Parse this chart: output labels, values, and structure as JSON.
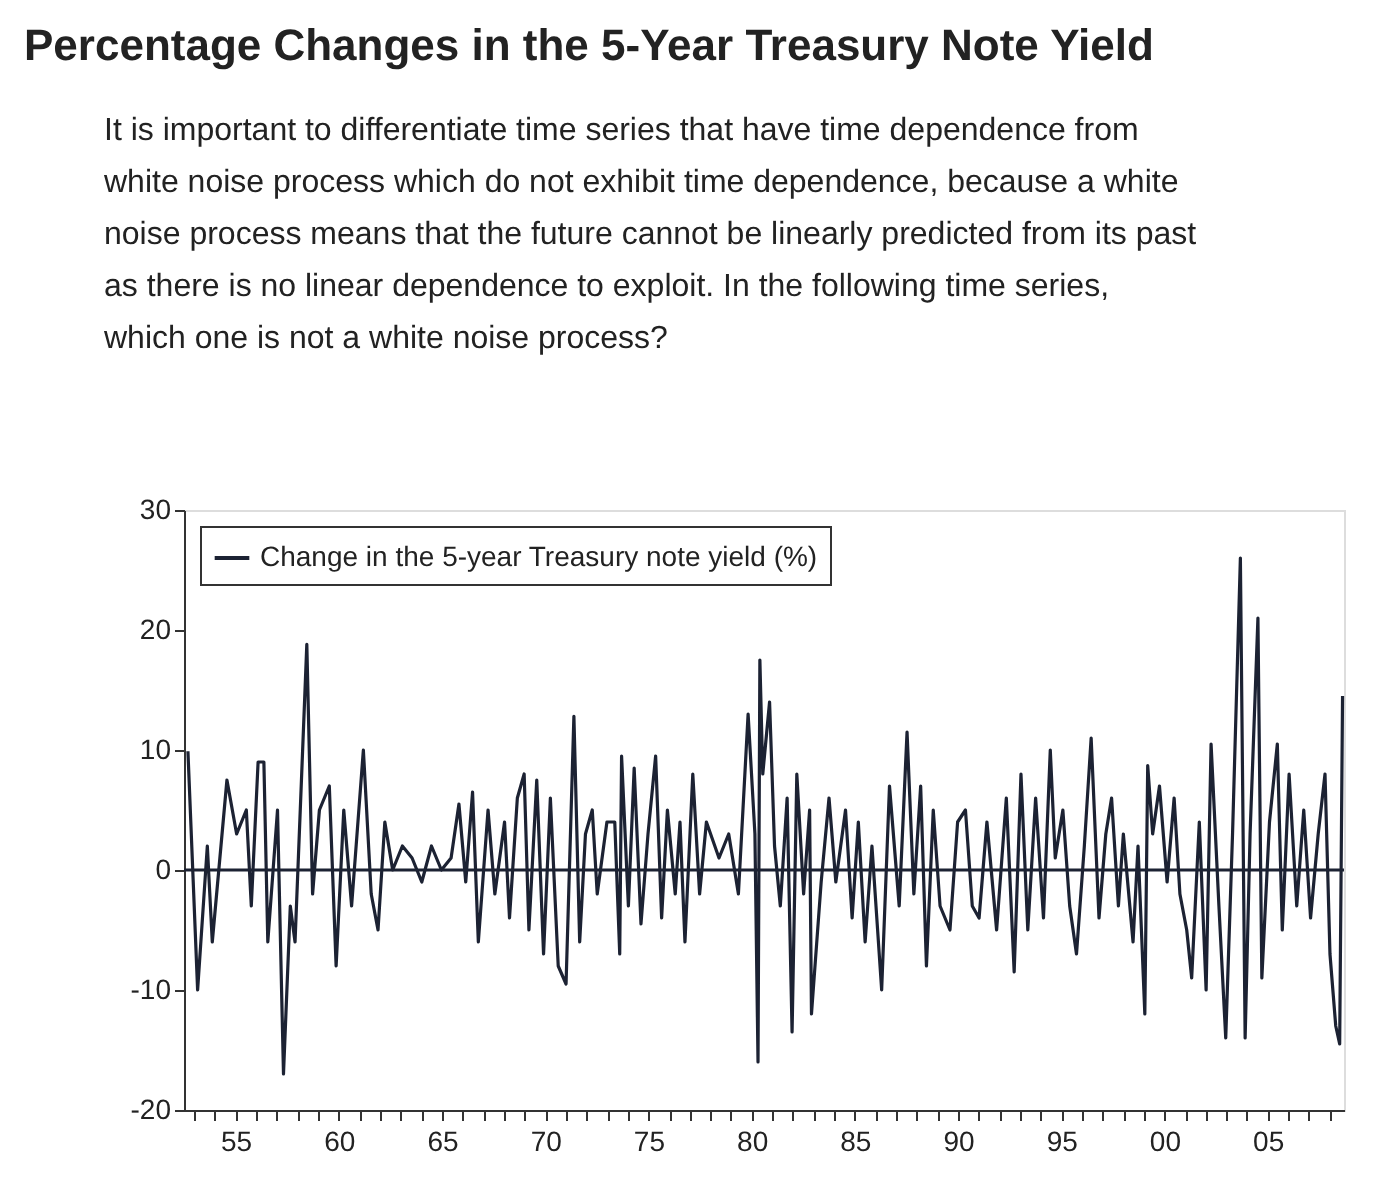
{
  "chart_data": {
    "type": "line",
    "title": "Percentage Changes in the 5-Year Treasury Note Yield",
    "annotations": [
      "It is important to differentiate time series that have time dependence from white noise process which do not exhibit time dependence, because a white noise process means that the future cannot be linearly predicted from its past as there is no linear dependence to exploit. In the following time series, which one is not a white noise process?"
    ],
    "x": [
      1952.69,
      1953.16,
      1953.63,
      1953.87,
      1954.58,
      1955.05,
      1955.52,
      1955.76,
      1956.09,
      1956.37,
      1956.56,
      1957.03,
      1957.32,
      1957.65,
      1957.88,
      1958.45,
      1958.73,
      1959.06,
      1959.54,
      1959.87,
      1960.24,
      1960.62,
      1961.19,
      1961.57,
      1961.9,
      1962.23,
      1962.61,
      1963.08,
      1963.55,
      1964.02,
      1964.49,
      1964.97,
      1965.44,
      1965.82,
      1966.15,
      1966.48,
      1966.76,
      1967.23,
      1967.56,
      1968.03,
      1968.27,
      1968.65,
      1968.98,
      1969.21,
      1969.59,
      1969.92,
      1970.25,
      1970.63,
      1971.01,
      1971.39,
      1971.67,
      1971.95,
      1972.28,
      1972.52,
      1972.99,
      1973.37,
      1973.61,
      1973.7,
      1974.03,
      1974.31,
      1974.64,
      1974.98,
      1975.35,
      1975.64,
      1975.92,
      1976.3,
      1976.53,
      1976.77,
      1977.15,
      1977.48,
      1977.81,
      1978.42,
      1978.89,
      1979.36,
      1979.83,
      1980.16,
      1980.31,
      1980.4,
      1980.54,
      1980.87,
      1981.11,
      1981.39,
      1981.72,
      1981.96,
      1982.19,
      1982.52,
      1982.81,
      1982.9,
      1983.37,
      1983.75,
      1984.08,
      1984.55,
      1984.87,
      1985.17,
      1985.5,
      1985.83,
      1986.3,
      1986.68,
      1987.15,
      1987.53,
      1987.86,
      1988.19,
      1988.47,
      1988.8,
      1989.13,
      1989.61,
      1989.98,
      1990.36,
      1990.69,
      1991.02,
      1991.4,
      1991.87,
      1992.34,
      1992.72,
      1993.05,
      1993.38,
      1993.76,
      1994.14,
      1994.47,
      1994.71,
      1995.08,
      1995.41,
      1995.74,
      1996.12,
      1996.45,
      1996.83,
      1997.16,
      1997.44,
      1997.77,
      1998.01,
      1998.48,
      1998.72,
      1999.05,
      1999.19,
      1999.43,
      1999.76,
      2000.13,
      2000.47,
      2000.75,
      2001.08,
      2001.32,
      2001.69,
      2002.02,
      2002.26,
      2002.64,
      2002.97,
      2003.3,
      2003.68,
      2003.91,
      2004.15,
      2004.53,
      2004.72,
      2005.09,
      2005.47,
      2005.71,
      2006.04,
      2006.41,
      2006.75,
      2007.08,
      2007.45,
      2007.78,
      2008.02,
      2008.3,
      2008.49,
      2008.63
    ],
    "series": [
      {
        "name": "Change in the 5-year Treasury note yield (%)",
        "color": "#1c2233",
        "values": [
          9.9,
          -10,
          2,
          -6,
          7.5,
          3,
          5,
          -3,
          9,
          9,
          -6,
          5,
          -17,
          -3,
          -6,
          18.8,
          -2,
          5,
          7,
          -8,
          5,
          -3,
          10,
          -2,
          -5,
          4,
          0,
          2,
          1,
          -1,
          2,
          0,
          1,
          5.5,
          -1,
          6.5,
          -6,
          5,
          -2,
          4,
          -4,
          6,
          8,
          -5,
          7.5,
          -7,
          6,
          -8,
          -9.5,
          12.8,
          -6,
          3,
          5,
          -2,
          4,
          4,
          -7,
          9.5,
          -3,
          8.5,
          -4.5,
          3,
          9.5,
          -4,
          5,
          -2,
          4,
          -6,
          8,
          -2,
          4,
          1,
          3,
          -2,
          13,
          3,
          -16,
          17.5,
          8,
          14,
          2,
          -3,
          6,
          -13.5,
          8,
          -2,
          5,
          -12,
          -1,
          6,
          -1,
          5,
          -4,
          4,
          -6,
          2,
          -10,
          7,
          -3,
          11.5,
          -2,
          7,
          -8,
          5,
          -3,
          -5,
          4,
          5,
          -3,
          -4,
          4,
          -5,
          6,
          -8.5,
          8,
          -5,
          6,
          -4,
          10,
          1,
          5,
          -3,
          -7,
          2,
          11,
          -4,
          3,
          6,
          -3,
          3,
          -6,
          2,
          -12,
          8.7,
          3,
          7,
          -1,
          6,
          -2,
          -5,
          -9,
          4,
          -10,
          10.5,
          -3,
          -14,
          3,
          26,
          -14,
          3,
          21,
          -9,
          4,
          10.5,
          -5,
          8,
          -3,
          5,
          -4,
          3,
          8,
          -7,
          -13,
          -14.5,
          14.5
        ]
      }
    ],
    "xlim": [
      1952.5,
      2008.7
    ],
    "xticks": [
      {
        "value": 1953,
        "label": null
      },
      {
        "value": 1954,
        "label": null
      },
      {
        "value": 1955,
        "label": "55"
      },
      {
        "value": 1956,
        "label": null
      },
      {
        "value": 1957,
        "label": null
      },
      {
        "value": 1958,
        "label": null
      },
      {
        "value": 1959,
        "label": null
      },
      {
        "value": 1960,
        "label": "60"
      },
      {
        "value": 1961,
        "label": null
      },
      {
        "value": 1962,
        "label": null
      },
      {
        "value": 1963,
        "label": null
      },
      {
        "value": 1964,
        "label": null
      },
      {
        "value": 1965,
        "label": "65"
      },
      {
        "value": 1966,
        "label": null
      },
      {
        "value": 1967,
        "label": null
      },
      {
        "value": 1968,
        "label": null
      },
      {
        "value": 1969,
        "label": null
      },
      {
        "value": 1970,
        "label": "70"
      },
      {
        "value": 1971,
        "label": null
      },
      {
        "value": 1972,
        "label": null
      },
      {
        "value": 1973,
        "label": null
      },
      {
        "value": 1974,
        "label": null
      },
      {
        "value": 1975,
        "label": "75"
      },
      {
        "value": 1976,
        "label": null
      },
      {
        "value": 1977,
        "label": null
      },
      {
        "value": 1978,
        "label": null
      },
      {
        "value": 1979,
        "label": null
      },
      {
        "value": 1980,
        "label": "80"
      },
      {
        "value": 1981,
        "label": null
      },
      {
        "value": 1982,
        "label": null
      },
      {
        "value": 1983,
        "label": null
      },
      {
        "value": 1984,
        "label": null
      },
      {
        "value": 1985,
        "label": "85"
      },
      {
        "value": 1986,
        "label": null
      },
      {
        "value": 1987,
        "label": null
      },
      {
        "value": 1988,
        "label": null
      },
      {
        "value": 1989,
        "label": null
      },
      {
        "value": 1990,
        "label": "90"
      },
      {
        "value": 1991,
        "label": null
      },
      {
        "value": 1992,
        "label": null
      },
      {
        "value": 1993,
        "label": null
      },
      {
        "value": 1994,
        "label": null
      },
      {
        "value": 1995,
        "label": "95"
      },
      {
        "value": 1996,
        "label": null
      },
      {
        "value": 1997,
        "label": null
      },
      {
        "value": 1998,
        "label": null
      },
      {
        "value": 1999,
        "label": null
      },
      {
        "value": 2000,
        "label": "00"
      },
      {
        "value": 2001,
        "label": null
      },
      {
        "value": 2002,
        "label": null
      },
      {
        "value": 2003,
        "label": null
      },
      {
        "value": 2004,
        "label": null
      },
      {
        "value": 2005,
        "label": "05"
      },
      {
        "value": 2006,
        "label": null
      },
      {
        "value": 2007,
        "label": null
      },
      {
        "value": 2008,
        "label": null
      }
    ],
    "ylim": [
      -20,
      30
    ],
    "yticks": [
      -20,
      -10,
      0,
      10,
      20,
      30
    ],
    "ref_lines": [
      {
        "axis": "y",
        "value": 0,
        "color": "#1c2233"
      }
    ],
    "grid": false,
    "legend": "top left",
    "marker": "none",
    "line_style": "solid"
  }
}
